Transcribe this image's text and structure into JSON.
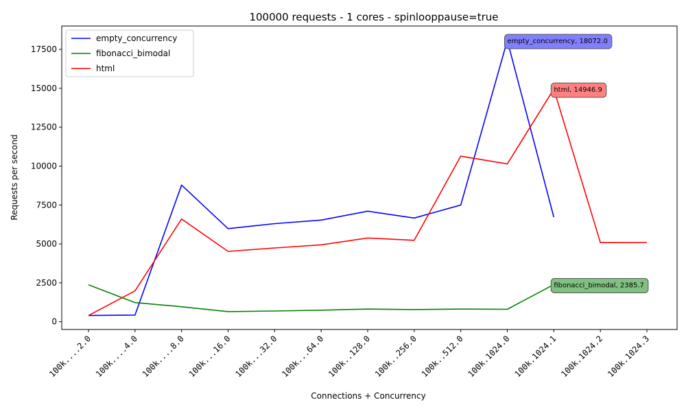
{
  "chart_data": {
    "type": "line",
    "title": "100000 requests - 1 cores - spinlooppause=true",
    "xlabel": "Connections + Concurrency",
    "ylabel": "Requests per second",
    "categories": [
      "100k....2.0",
      "100k....4.0",
      "100k....8.0",
      "100k...16.0",
      "100k...32.0",
      "100k...64.0",
      "100k..128.0",
      "100k..256.0",
      "100k..512.0",
      "100k.1024.0",
      "100k.1024.1",
      "100k.1024.2",
      "100k.1024.3"
    ],
    "ylim": [
      -500,
      19000
    ],
    "yticks": [
      0,
      2500,
      5000,
      7500,
      10000,
      12500,
      15000,
      17500
    ],
    "ytick_labels": [
      "0",
      "2500",
      "5000",
      "7500",
      "10000",
      "12500",
      "15000",
      "17500"
    ],
    "grid": false,
    "legend_position": "top-left",
    "series": [
      {
        "name": "empty_concurrency",
        "color": "#0000ff",
        "annot_bg": "#8080ff",
        "values": [
          400,
          430,
          8780,
          5980,
          6300,
          6530,
          7100,
          6660,
          7500,
          18072.0,
          6720,
          null,
          null
        ],
        "annotation": {
          "index": 9,
          "label": "empty_concurrency, 18072.0"
        }
      },
      {
        "name": "fibonacci_bimodal",
        "color": "#008000",
        "annot_bg": "#80c080",
        "values": [
          2370,
          1230,
          960,
          650,
          690,
          740,
          810,
          780,
          810,
          800,
          2385.7,
          null,
          null
        ],
        "annotation": {
          "index": 10,
          "label": "fibonacci_bimodal, 2385.7"
        }
      },
      {
        "name": "html",
        "color": "#ff0000",
        "annot_bg": "#ff8080",
        "values": [
          400,
          1980,
          6600,
          4520,
          4740,
          4940,
          5380,
          5230,
          10640,
          10140,
          14946.9,
          5080,
          5090
        ],
        "annotation": {
          "index": 10,
          "label": "html, 14946.9"
        }
      }
    ]
  }
}
